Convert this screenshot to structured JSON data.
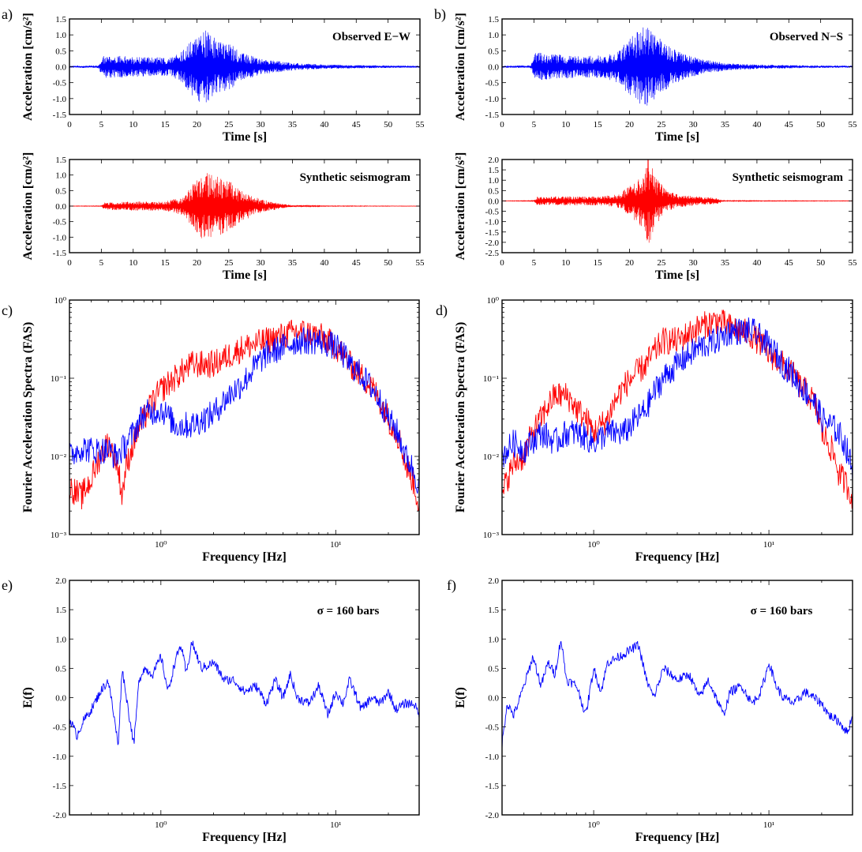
{
  "chart_data": [
    {
      "panel": "a)",
      "type": "line",
      "annotation": "Observed E−W",
      "xlabel": "Time [s]",
      "ylabel": "Acceleration [cm/s²]",
      "xlim": [
        0,
        55
      ],
      "ylim": [
        -1.5,
        1.5
      ],
      "xticks": [
        0,
        5,
        10,
        15,
        20,
        25,
        30,
        35,
        40,
        45,
        50,
        55
      ],
      "yticks": [
        -1.5,
        -1.0,
        -0.5,
        0.0,
        0.5,
        1.0,
        1.5
      ],
      "color": "#0000ff",
      "envelope": {
        "t": [
          0,
          4.5,
          5.2,
          8,
          12,
          16,
          18,
          19,
          21,
          23,
          25,
          27,
          30,
          35,
          40,
          45,
          50,
          55
        ],
        "a": [
          0.03,
          0.04,
          0.35,
          0.35,
          0.3,
          0.3,
          0.55,
          0.9,
          1.2,
          0.9,
          0.75,
          0.45,
          0.25,
          0.12,
          0.07,
          0.05,
          0.04,
          0.03
        ]
      }
    },
    {
      "panel": "b)",
      "type": "line",
      "annotation": "Observed N−S",
      "xlabel": "Time [s]",
      "ylabel": "Acceleration [cm/s²]",
      "xlim": [
        0,
        55
      ],
      "ylim": [
        -1.5,
        1.5
      ],
      "xticks": [
        0,
        5,
        10,
        15,
        20,
        25,
        30,
        35,
        40,
        45,
        50,
        55
      ],
      "yticks": [
        -1.5,
        -1.0,
        -0.5,
        0.0,
        0.5,
        1.0,
        1.5
      ],
      "color": "#0000ff",
      "envelope": {
        "t": [
          0,
          4.5,
          5.2,
          8,
          12,
          16,
          18,
          20,
          22.5,
          24,
          26,
          28,
          31,
          35,
          40,
          45,
          50,
          55
        ],
        "a": [
          0.03,
          0.04,
          0.45,
          0.4,
          0.35,
          0.35,
          0.5,
          0.9,
          1.3,
          1.0,
          0.7,
          0.45,
          0.25,
          0.12,
          0.07,
          0.05,
          0.04,
          0.03
        ]
      }
    },
    {
      "panel": "",
      "type": "line",
      "annotation": "Synthetic seismogram",
      "xlabel": "Time [s]",
      "ylabel": "Acceleration [cm/s²]",
      "xlim": [
        0,
        55
      ],
      "ylim": [
        -1.5,
        1.5
      ],
      "xticks": [
        0,
        5,
        10,
        15,
        20,
        25,
        30,
        35,
        40,
        45,
        50,
        55
      ],
      "yticks": [
        -1.5,
        -1.0,
        -0.5,
        0.0,
        0.5,
        1.0,
        1.5
      ],
      "color": "#ff0000",
      "envelope": {
        "t": [
          0,
          5,
          5.5,
          10,
          15,
          18,
          19.5,
          21,
          23,
          25,
          27,
          29,
          31,
          33,
          35,
          40,
          55
        ],
        "a": [
          0.005,
          0.01,
          0.12,
          0.15,
          0.15,
          0.3,
          0.8,
          1.1,
          1.0,
          0.85,
          0.5,
          0.3,
          0.18,
          0.08,
          0.03,
          0.01,
          0.005
        ]
      }
    },
    {
      "panel": "",
      "type": "line",
      "annotation": "Synthetic seismogram",
      "xlabel": "Time [s]",
      "ylabel": "Acceleration [cm/s²]",
      "xlim": [
        0,
        55
      ],
      "ylim": [
        -2.5,
        2.0
      ],
      "xticks": [
        0,
        5,
        10,
        15,
        20,
        25,
        30,
        35,
        40,
        45,
        50,
        55
      ],
      "yticks": [
        -2.5,
        -2.0,
        -1.5,
        -1.0,
        -0.5,
        0.0,
        0.5,
        1.0,
        1.5,
        2.0
      ],
      "color": "#ff0000",
      "envelope": {
        "t": [
          0,
          5,
          5.5,
          10,
          15,
          18,
          20,
          22,
          23,
          24,
          26,
          28,
          31,
          34,
          34.5,
          55
        ],
        "a": [
          0.01,
          0.02,
          0.2,
          0.22,
          0.22,
          0.3,
          0.7,
          1.3,
          2.2,
          1.2,
          0.5,
          0.3,
          0.2,
          0.15,
          0.02,
          0.01
        ]
      }
    },
    {
      "panel": "c)",
      "type": "line",
      "scale": "log-log",
      "xlabel": "Frequency [Hz]",
      "ylabel": "Fourier Acceleration Spectra (FAS)",
      "xlim": [
        0.3,
        30
      ],
      "ylim": [
        0.001,
        1
      ],
      "xticklabels": [
        "10⁰",
        "10¹"
      ],
      "yticklabels": [
        "10⁻³",
        "10⁻²",
        "10⁻¹",
        "10⁰"
      ],
      "series": [
        {
          "color": "#ff0000",
          "f": [
            0.3,
            0.35,
            0.4,
            0.5,
            0.55,
            0.6,
            0.7,
            0.8,
            1.0,
            1.2,
            1.5,
            2.0,
            3.0,
            4.0,
            5.0,
            6.0,
            8.0,
            10,
            12,
            15,
            18,
            20,
            25,
            30
          ],
          "v": [
            0.004,
            0.003,
            0.005,
            0.015,
            0.009,
            0.003,
            0.015,
            0.03,
            0.07,
            0.1,
            0.15,
            0.15,
            0.25,
            0.3,
            0.35,
            0.4,
            0.35,
            0.25,
            0.15,
            0.09,
            0.05,
            0.03,
            0.008,
            0.002
          ]
        },
        {
          "color": "#0000ff",
          "f": [
            0.3,
            0.35,
            0.4,
            0.5,
            0.55,
            0.6,
            0.7,
            0.8,
            1.0,
            1.2,
            1.5,
            2.0,
            3.0,
            4.0,
            5.0,
            6.0,
            8.0,
            10,
            12,
            15,
            18,
            20,
            25,
            30
          ],
          "v": [
            0.01,
            0.013,
            0.012,
            0.012,
            0.01,
            0.012,
            0.02,
            0.035,
            0.04,
            0.025,
            0.025,
            0.035,
            0.09,
            0.2,
            0.25,
            0.3,
            0.3,
            0.25,
            0.15,
            0.09,
            0.05,
            0.03,
            0.01,
            0.004
          ]
        }
      ]
    },
    {
      "panel": "d)",
      "type": "line",
      "scale": "log-log",
      "xlabel": "Frequency [Hz]",
      "ylabel": "Fourier Acceleration Spectra (FAS)",
      "xlim": [
        0.3,
        30
      ],
      "ylim": [
        0.001,
        1
      ],
      "xticklabels": [
        "10⁰",
        "10¹"
      ],
      "yticklabels": [
        "10⁻³",
        "10⁻²",
        "10⁻¹",
        "10⁰"
      ],
      "series": [
        {
          "color": "#ff0000",
          "f": [
            0.3,
            0.35,
            0.4,
            0.5,
            0.6,
            0.7,
            0.8,
            1.0,
            1.2,
            1.5,
            2.0,
            2.5,
            3.0,
            4.0,
            5.0,
            6.0,
            8.0,
            10,
            12,
            15,
            18,
            20,
            25,
            30
          ],
          "v": [
            0.003,
            0.008,
            0.01,
            0.03,
            0.06,
            0.06,
            0.04,
            0.02,
            0.03,
            0.08,
            0.15,
            0.3,
            0.3,
            0.45,
            0.55,
            0.45,
            0.35,
            0.2,
            0.15,
            0.08,
            0.05,
            0.02,
            0.006,
            0.003
          ]
        },
        {
          "color": "#0000ff",
          "f": [
            0.3,
            0.35,
            0.4,
            0.5,
            0.6,
            0.7,
            0.8,
            1.0,
            1.2,
            1.5,
            2.0,
            2.5,
            3.0,
            4.0,
            5.0,
            6.0,
            8.0,
            10,
            12,
            15,
            18,
            20,
            25,
            30
          ],
          "v": [
            0.01,
            0.015,
            0.012,
            0.02,
            0.015,
            0.02,
            0.02,
            0.015,
            0.02,
            0.02,
            0.04,
            0.1,
            0.15,
            0.25,
            0.3,
            0.4,
            0.4,
            0.25,
            0.15,
            0.08,
            0.05,
            0.03,
            0.02,
            0.006
          ]
        }
      ]
    },
    {
      "panel": "e)",
      "type": "line",
      "scale": "log-x",
      "annotation": "σ = 160 bars",
      "xlabel": "Frequency [Hz]",
      "ylabel": "E(f)",
      "xlim": [
        0.3,
        30
      ],
      "ylim": [
        -2.0,
        2.0
      ],
      "xticklabels": [
        "10⁰",
        "10¹"
      ],
      "yticks": [
        -2.0,
        -1.5,
        -1.0,
        -0.5,
        0.0,
        0.5,
        1.0,
        1.5,
        2.0
      ],
      "series": [
        {
          "color": "#0000ff",
          "f": [
            0.3,
            0.33,
            0.36,
            0.4,
            0.45,
            0.5,
            0.55,
            0.57,
            0.6,
            0.65,
            0.7,
            0.75,
            0.8,
            0.9,
            1.0,
            1.1,
            1.2,
            1.3,
            1.4,
            1.5,
            1.7,
            2.0,
            2.3,
            2.6,
            3.0,
            3.5,
            4.0,
            4.5,
            5.0,
            5.5,
            6.0,
            7.0,
            8.0,
            9.0,
            10,
            11,
            12,
            14,
            16,
            18,
            20,
            22,
            25,
            28,
            30
          ],
          "v": [
            -0.35,
            -0.65,
            -0.4,
            -0.2,
            0.1,
            0.3,
            -0.5,
            -0.8,
            0.5,
            -0.2,
            -0.8,
            0.3,
            0.5,
            0.4,
            0.7,
            0.1,
            0.6,
            0.9,
            0.4,
            0.95,
            0.5,
            0.6,
            0.3,
            0.3,
            0.1,
            0.2,
            -0.1,
            0.3,
            0.0,
            0.4,
            0.0,
            -0.1,
            0.2,
            -0.3,
            0.1,
            -0.1,
            0.3,
            -0.2,
            0.0,
            -0.1,
            0.1,
            -0.2,
            -0.1,
            -0.1,
            -0.3
          ]
        }
      ]
    },
    {
      "panel": "f)",
      "type": "line",
      "scale": "log-x",
      "annotation": "σ = 160 bars",
      "xlabel": "Frequency [Hz]",
      "ylabel": "E(f)",
      "xlim": [
        0.3,
        30
      ],
      "ylim": [
        -2.0,
        2.0
      ],
      "xticklabels": [
        "10⁰",
        "10¹"
      ],
      "yticks": [
        -2.0,
        -1.5,
        -1.0,
        -0.5,
        0.0,
        0.5,
        1.0,
        1.5,
        2.0
      ],
      "series": [
        {
          "color": "#0000ff",
          "f": [
            0.3,
            0.32,
            0.35,
            0.4,
            0.45,
            0.5,
            0.55,
            0.6,
            0.65,
            0.7,
            0.8,
            0.9,
            1.0,
            1.1,
            1.2,
            1.4,
            1.6,
            1.8,
            2.0,
            2.2,
            2.5,
            3.0,
            3.5,
            4.0,
            4.5,
            5.0,
            5.5,
            6.0,
            7.0,
            8.0,
            9.0,
            10,
            11,
            12,
            14,
            16,
            18,
            20,
            22,
            25,
            28,
            30
          ],
          "v": [
            -0.8,
            -0.1,
            -0.3,
            0.2,
            0.7,
            0.2,
            0.6,
            0.4,
            1.0,
            0.3,
            0.2,
            -0.3,
            0.5,
            0.1,
            0.6,
            0.7,
            0.8,
            0.9,
            0.3,
            0.0,
            0.5,
            0.3,
            0.4,
            0.0,
            0.3,
            0.0,
            -0.3,
            0.1,
            0.2,
            -0.1,
            0.1,
            0.6,
            0.2,
            0.0,
            -0.1,
            0.1,
            0.0,
            -0.1,
            -0.3,
            -0.4,
            -0.6,
            -0.3
          ]
        }
      ]
    }
  ]
}
